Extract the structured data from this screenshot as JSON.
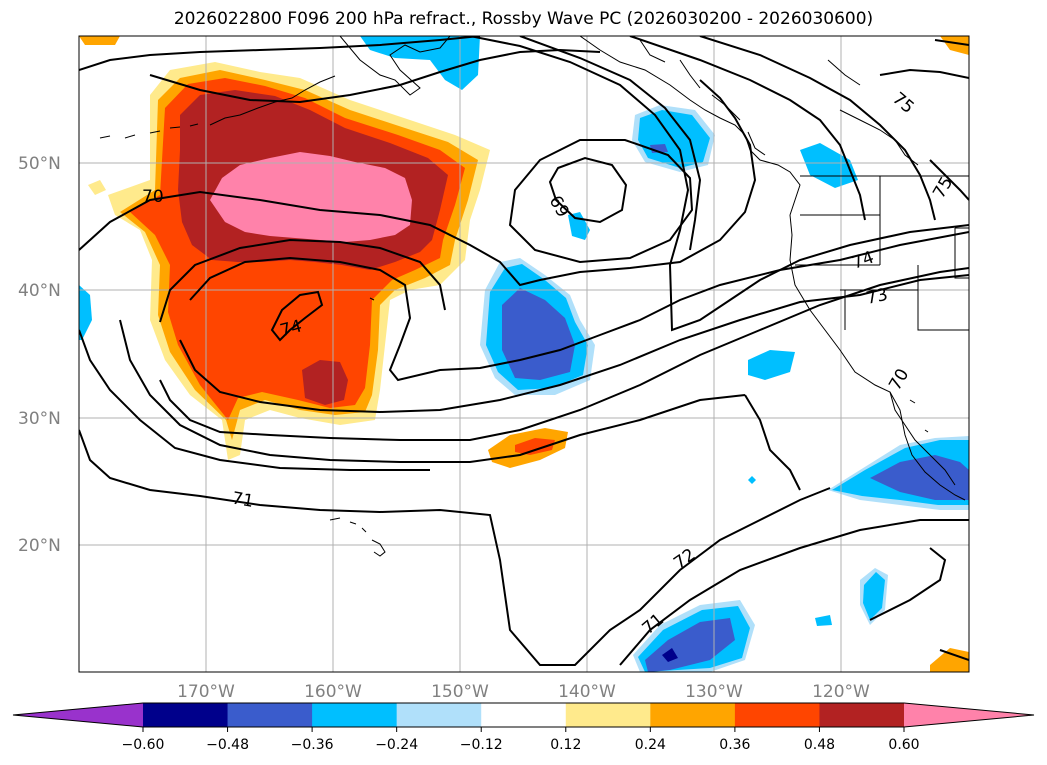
{
  "title": "2026022800 F096 200 hPa refract., Rossby Wave PC (2026030200 - 2026030600)",
  "map": {
    "lat_labels": [
      "50°N",
      "40°N",
      "30°N",
      "20°N"
    ],
    "lon_labels": [
      "170°W",
      "160°W",
      "150°W",
      "140°W",
      "130°W",
      "120°W"
    ],
    "contour_labels": [
      "70",
      "69",
      "74",
      "73",
      "75",
      "75",
      "74",
      "71",
      "72",
      "71",
      "70"
    ],
    "fill_colors": {
      "pink": "#ff82aa",
      "darkred": "#b22222",
      "orangered": "#ff4500",
      "orange": "#ffa500",
      "lightyellow": "#ffea8c",
      "deepsky": "#00bfff",
      "lightblue": "#b0e0fa",
      "royal": "#3a5ccc",
      "navy": "#00008b"
    }
  },
  "colorbar": {
    "colors": [
      "#9932cc",
      "#00008b",
      "#3a5ccc",
      "#00bfff",
      "#b0e0fa",
      "#ffffff",
      "#ffea8c",
      "#ffa500",
      "#ff4500",
      "#b22222",
      "#ff82aa"
    ],
    "tick_labels": [
      "−0.60",
      "−0.48",
      "−0.36",
      "−0.24",
      "−0.12",
      "0.12",
      "0.24",
      "0.36",
      "0.48",
      "0.60"
    ]
  }
}
